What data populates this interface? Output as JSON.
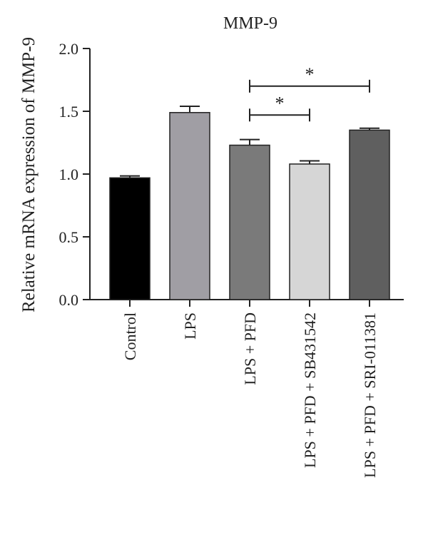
{
  "chart_data": {
    "type": "bar",
    "title": "MMP-9",
    "ylabel": "Relative mRNA expression of MMP-9",
    "xlabel": "",
    "ylim": [
      0,
      2.0
    ],
    "yticks": [
      "0.0",
      "0.5",
      "1.0",
      "1.5",
      "2.0"
    ],
    "categories": [
      "Control",
      "LPS",
      "LPS + PFD",
      "LPS + PFD + SB431542",
      "LPS + PFD + SRI-011381"
    ],
    "values": [
      0.97,
      1.49,
      1.23,
      1.08,
      1.35
    ],
    "errors": [
      0.015,
      0.05,
      0.045,
      0.025,
      0.015
    ],
    "bar_colors": [
      "#000000",
      "#a09ea4",
      "#7a7a7a",
      "#d6d6d6",
      "#5f5f5f"
    ],
    "significance": [
      {
        "from": 2,
        "to": 3,
        "label": "*",
        "y": 1.47
      },
      {
        "from": 2,
        "to": 4,
        "label": "*",
        "y": 1.7
      }
    ],
    "grid": false,
    "legend": "none"
  }
}
